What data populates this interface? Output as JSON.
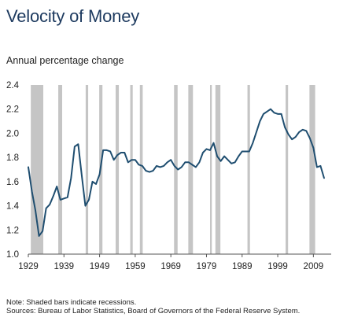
{
  "title": "Velocity of Money",
  "subtitle": "Annual percentage change",
  "notes": {
    "note": "Note: Shaded bars indicate recessions.",
    "sources": "Sources: Bureau of Labor Statistics, Board of Governors of the Federal Reserve System."
  },
  "colors": {
    "line": "#1f4e70",
    "recession": "#c5c5c5",
    "axis": "#555555",
    "title": "#1d3a5f"
  },
  "chart_data": {
    "type": "line",
    "title": "Velocity of Money",
    "ylabel": "Annual percentage change",
    "xlabel": "",
    "xlim": [
      1929,
      2014
    ],
    "ylim": [
      1.0,
      2.4
    ],
    "xticks": [
      "1929",
      "1939",
      "1949",
      "1959",
      "1969",
      "1979",
      "1989",
      "1999",
      "2009"
    ],
    "yticks": [
      "1.0",
      "1.2",
      "1.4",
      "1.6",
      "1.8",
      "2.0",
      "2.2",
      "2.4"
    ],
    "grid": false,
    "recessions": [
      [
        1929.7,
        1933.2
      ],
      [
        1937.4,
        1938.5
      ],
      [
        1945.1,
        1945.8
      ],
      [
        1948.9,
        1949.8
      ],
      [
        1953.5,
        1954.4
      ],
      [
        1957.6,
        1958.3
      ],
      [
        1960.3,
        1961.1
      ],
      [
        1969.9,
        1970.9
      ],
      [
        1973.9,
        1975.2
      ],
      [
        1980.0,
        1980.5
      ],
      [
        1981.5,
        1982.9
      ],
      [
        1990.5,
        1991.2
      ],
      [
        2001.2,
        2001.9
      ],
      [
        2007.9,
        2009.5
      ]
    ],
    "series": [
      {
        "x": [
          1929,
          1930,
          1931,
          1932,
          1933,
          1934,
          1935,
          1936,
          1937,
          1938,
          1939,
          1940,
          1941,
          1942,
          1943,
          1944,
          1945,
          1946,
          1947,
          1948,
          1949,
          1950,
          1951,
          1952,
          1953,
          1954,
          1955,
          1956,
          1957,
          1958,
          1959,
          1960,
          1961,
          1962,
          1963,
          1964,
          1965,
          1966,
          1967,
          1968,
          1969,
          1970,
          1971,
          1972,
          1973,
          1974,
          1975,
          1976,
          1977,
          1978,
          1979,
          1980,
          1981,
          1982,
          1983,
          1984,
          1985,
          1986,
          1987,
          1988,
          1989,
          1990,
          1991,
          1992,
          1993,
          1994,
          1995,
          1996,
          1997,
          1998,
          1999,
          2000,
          2001,
          2002,
          2003,
          2004,
          2005,
          2006,
          2007,
          2008,
          2009,
          2010,
          2011,
          2012
        ],
        "values": [
          1.72,
          1.52,
          1.36,
          1.15,
          1.19,
          1.38,
          1.41,
          1.48,
          1.56,
          1.45,
          1.46,
          1.47,
          1.63,
          1.89,
          1.91,
          1.65,
          1.4,
          1.45,
          1.6,
          1.58,
          1.66,
          1.86,
          1.86,
          1.85,
          1.78,
          1.82,
          1.84,
          1.84,
          1.76,
          1.78,
          1.78,
          1.74,
          1.73,
          1.69,
          1.68,
          1.69,
          1.73,
          1.72,
          1.73,
          1.76,
          1.78,
          1.73,
          1.7,
          1.72,
          1.76,
          1.76,
          1.74,
          1.72,
          1.76,
          1.84,
          1.87,
          1.86,
          1.92,
          1.81,
          1.77,
          1.81,
          1.78,
          1.75,
          1.76,
          1.81,
          1.85,
          1.85,
          1.85,
          1.92,
          2.01,
          2.1,
          2.16,
          2.18,
          2.2,
          2.17,
          2.16,
          2.16,
          2.05,
          1.99,
          1.95,
          1.97,
          2.01,
          2.03,
          2.02,
          1.96,
          1.88,
          1.72,
          1.73,
          1.63
        ]
      }
    ]
  }
}
